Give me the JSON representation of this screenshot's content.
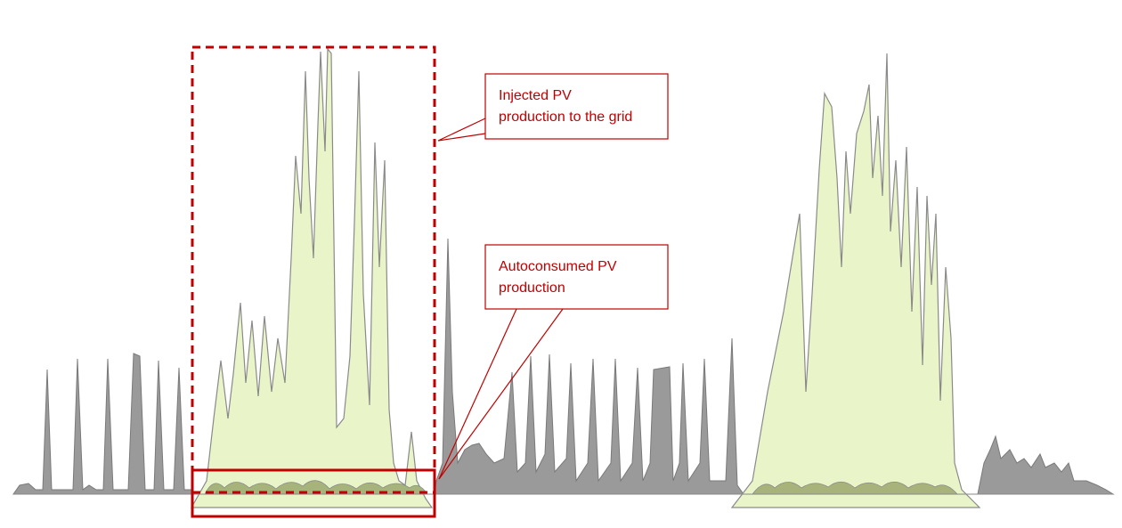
{
  "callouts": [
    {
      "lines": [
        "Injected PV",
        "production to the grid"
      ]
    },
    {
      "lines": [
        "Autoconsumed PV",
        "production"
      ]
    }
  ]
}
